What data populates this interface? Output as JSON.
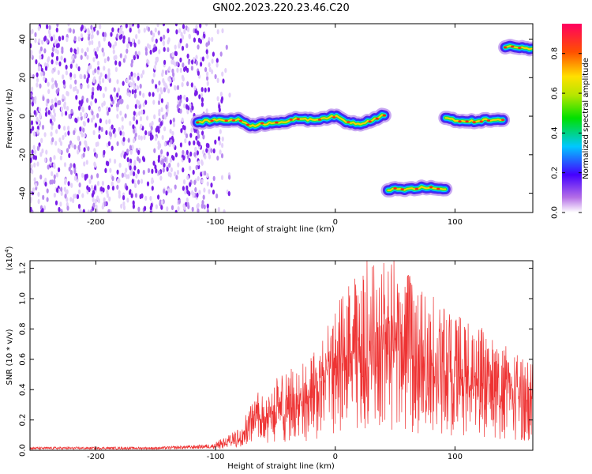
{
  "title": "GN02.2023.220.23.46.C20",
  "chart_data": [
    {
      "type": "heatmap",
      "xlabel": "Height of straight line (km)",
      "ylabel": "Frequency (Hz)",
      "xlim": [
        -255,
        165
      ],
      "ylim": [
        -50,
        48
      ],
      "xticks": [
        -200,
        -100,
        0,
        100
      ],
      "yticks": [
        -40,
        -20,
        0,
        20,
        40
      ],
      "colorbar": {
        "label": "Normalized spectral amplitude",
        "range": [
          0,
          0.95
        ],
        "ticks": [
          "0.0",
          "0.2",
          "0.4",
          "0.6",
          "0.8"
        ],
        "colormap": "rainbow"
      },
      "noise_region": {
        "x": [
          -255,
          -100
        ],
        "y": [
          -50,
          48
        ]
      },
      "tracks": [
        {
          "x": [
            -115,
            -100,
            -80,
            -70,
            -60,
            -50,
            -40,
            -30,
            -20,
            -10,
            0,
            10,
            20,
            30,
            42
          ],
          "freq": [
            -3,
            -2,
            -2,
            -5,
            -4,
            -3,
            -3,
            -1,
            -2,
            -1,
            0,
            -3,
            -4,
            -2,
            1
          ]
        },
        {
          "x": [
            44,
            60,
            75,
            92
          ],
          "freq": [
            -38,
            -38,
            -37,
            -38
          ]
        },
        {
          "x": [
            92,
            110,
            125,
            140
          ],
          "freq": [
            -1,
            -3,
            -2,
            -2
          ]
        },
        {
          "x": [
            142,
            155,
            165
          ],
          "freq": [
            36,
            36,
            35
          ]
        }
      ]
    },
    {
      "type": "line",
      "xlabel": "Height of straight line (km)",
      "ylabel": "SNR (10 * v/v)",
      "yscale_label": "(x10",
      "yscale_exp": "4",
      "xlim": [
        -255,
        165
      ],
      "ylim": [
        0,
        1.25
      ],
      "xticks": [
        -200,
        -100,
        0,
        100
      ],
      "yticks": [
        "0.0",
        "0.2",
        "0.4",
        "0.6",
        "0.8",
        "1.0",
        "1.2"
      ],
      "series": [
        {
          "color": "#ee3333",
          "envelope_x": [
            -255,
            -150,
            -120,
            -100,
            -90,
            -80,
            -70,
            -60,
            -50,
            -40,
            -30,
            -20,
            -10,
            0,
            10,
            20,
            30,
            40,
            50,
            60,
            70,
            80,
            90,
            100,
            110,
            120,
            130,
            140,
            150,
            165
          ],
          "envelope_y": [
            0.02,
            0.02,
            0.03,
            0.04,
            0.06,
            0.12,
            0.22,
            0.28,
            0.32,
            0.35,
            0.38,
            0.42,
            0.5,
            0.62,
            0.72,
            0.78,
            0.82,
            0.84,
            0.82,
            0.78,
            0.72,
            0.68,
            0.64,
            0.6,
            0.57,
            0.54,
            0.5,
            0.46,
            0.43,
            0.4
          ]
        }
      ]
    }
  ]
}
